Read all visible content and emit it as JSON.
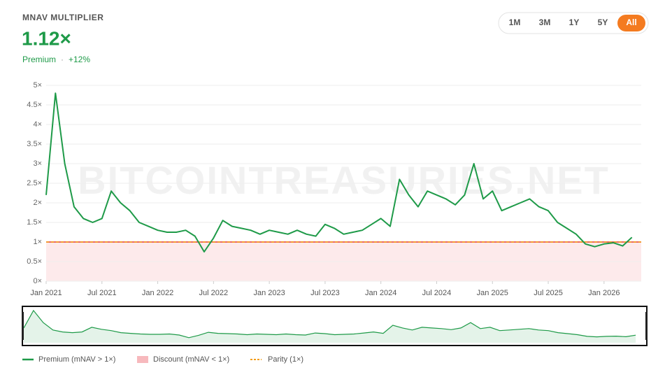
{
  "header": {
    "title": "MNAV MULTIPLIER",
    "value": "1.12×",
    "status": "Premium",
    "separator": "·",
    "change": "+12%"
  },
  "range_buttons": [
    "1M",
    "3M",
    "1Y",
    "5Y",
    "All"
  ],
  "active_range": "All",
  "chart_data": {
    "type": "line",
    "watermark": "BITCOINTREASURIES.NET",
    "x": [
      "2021-01",
      "2021-02",
      "2021-03",
      "2021-04",
      "2021-05",
      "2021-06",
      "2021-07",
      "2021-08",
      "2021-09",
      "2021-10",
      "2021-11",
      "2021-12",
      "2022-01",
      "2022-02",
      "2022-03",
      "2022-04",
      "2022-05",
      "2022-06",
      "2022-07",
      "2022-08",
      "2022-09",
      "2022-10",
      "2022-11",
      "2022-12",
      "2023-01",
      "2023-02",
      "2023-03",
      "2023-04",
      "2023-05",
      "2023-06",
      "2023-07",
      "2023-08",
      "2023-09",
      "2023-10",
      "2023-11",
      "2023-12",
      "2024-01",
      "2024-02",
      "2024-03",
      "2024-04",
      "2024-05",
      "2024-06",
      "2024-07",
      "2024-08",
      "2024-09",
      "2024-10",
      "2024-11",
      "2024-12",
      "2025-01",
      "2025-02",
      "2025-03",
      "2025-04",
      "2025-05",
      "2025-06",
      "2025-07",
      "2025-08",
      "2025-09",
      "2025-10",
      "2025-11",
      "2025-12",
      "2026-01",
      "2026-02",
      "2026-03",
      "2026-04"
    ],
    "series": [
      {
        "name": "Premium (mNAV > 1×)",
        "color": "#1e9a48",
        "values": [
          2.2,
          4.8,
          3.0,
          1.9,
          1.6,
          1.5,
          1.6,
          2.3,
          2.0,
          1.8,
          1.5,
          1.4,
          1.3,
          1.25,
          1.25,
          1.3,
          1.15,
          0.75,
          1.1,
          1.55,
          1.4,
          1.35,
          1.3,
          1.2,
          1.3,
          1.25,
          1.2,
          1.3,
          1.2,
          1.15,
          1.45,
          1.35,
          1.2,
          1.25,
          1.3,
          1.45,
          1.6,
          1.4,
          2.6,
          2.2,
          1.9,
          2.3,
          2.2,
          2.1,
          1.95,
          2.2,
          3.0,
          2.1,
          2.3,
          1.8,
          1.9,
          2.0,
          2.1,
          1.9,
          1.8,
          1.5,
          1.35,
          1.2,
          0.95,
          0.88,
          0.95,
          0.98,
          0.9,
          1.12
        ]
      }
    ],
    "discount": {
      "name": "Discount (mNAV < 1×)",
      "color": "#f7b9bd"
    },
    "parity": {
      "name": "Parity (1×)",
      "value": 1,
      "color": "#f39c12"
    },
    "xlim": [
      "2021-01",
      "2026-05"
    ],
    "xticks": [
      {
        "value": "2021-01",
        "label": "Jan 2021"
      },
      {
        "value": "2021-07",
        "label": "Jul 2021"
      },
      {
        "value": "2022-01",
        "label": "Jan 2022"
      },
      {
        "value": "2022-07",
        "label": "Jul 2022"
      },
      {
        "value": "2023-01",
        "label": "Jan 2023"
      },
      {
        "value": "2023-07",
        "label": "Jul 2023"
      },
      {
        "value": "2024-01",
        "label": "Jan 2024"
      },
      {
        "value": "2024-07",
        "label": "Jul 2024"
      },
      {
        "value": "2025-01",
        "label": "Jan 2025"
      },
      {
        "value": "2025-07",
        "label": "Jul 2025"
      },
      {
        "value": "2026-01",
        "label": "Jan 2026"
      }
    ],
    "ylim": [
      0,
      5
    ],
    "yticks": [
      {
        "value": 0,
        "label": "0×"
      },
      {
        "value": 0.5,
        "label": "0.5×"
      },
      {
        "value": 1,
        "label": "1×"
      },
      {
        "value": 1.5,
        "label": "1.5×"
      },
      {
        "value": 2,
        "label": "2×"
      },
      {
        "value": 2.5,
        "label": "2.5×"
      },
      {
        "value": 3,
        "label": "3×"
      },
      {
        "value": 3.5,
        "label": "3.5×"
      },
      {
        "value": 4,
        "label": "4×"
      },
      {
        "value": 4.5,
        "label": "4.5×"
      },
      {
        "value": 5,
        "label": "5×"
      }
    ],
    "grid": true
  }
}
